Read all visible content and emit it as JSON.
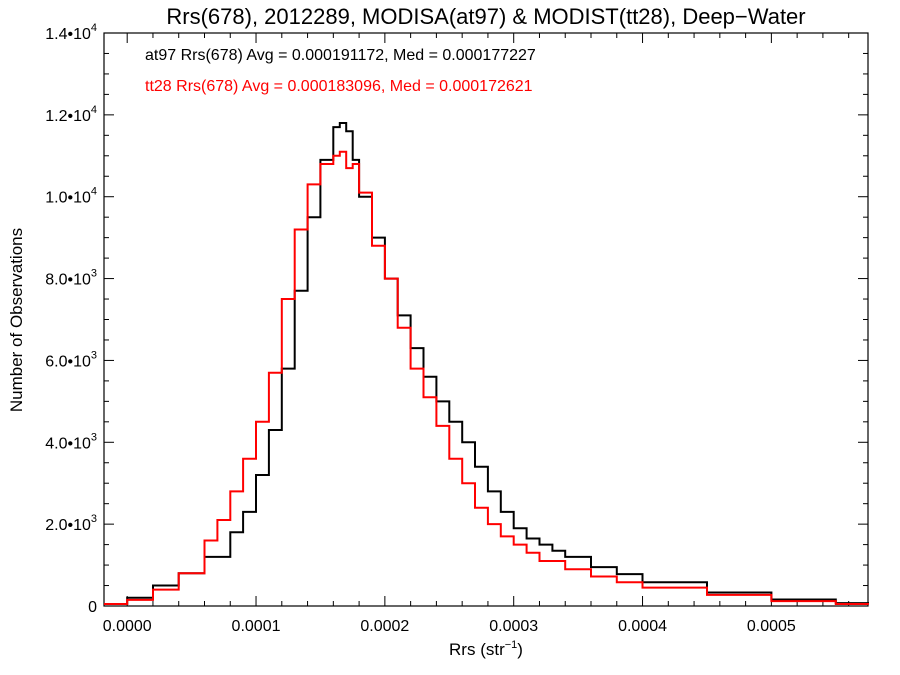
{
  "chart_data": {
    "type": "line",
    "title": "Rrs(678), 2012289, MODISA(at97) & MODIST(tt28), Deep−Water",
    "xlabel": "Rrs (str",
    "xlabel_sup": "−1",
    "xlabel_tail": ")",
    "ylabel": "Number of Observations",
    "xlim": [
      -1.8e-05,
      0.000575
    ],
    "ylim": [
      0,
      14000
    ],
    "x_ticks": [
      {
        "value": 0.0,
        "label": "0.0000"
      },
      {
        "value": 0.0001,
        "label": "0.0001"
      },
      {
        "value": 0.0002,
        "label": "0.0002"
      },
      {
        "value": 0.0003,
        "label": "0.0003"
      },
      {
        "value": 0.0004,
        "label": "0.0004"
      },
      {
        "value": 0.0005,
        "label": "0.0005"
      }
    ],
    "y_ticks": [
      {
        "value": 0,
        "label": "0",
        "exp": ""
      },
      {
        "value": 2000,
        "label": "2.0•10",
        "exp": "3"
      },
      {
        "value": 4000,
        "label": "4.0•10",
        "exp": "3"
      },
      {
        "value": 6000,
        "label": "6.0•10",
        "exp": "3"
      },
      {
        "value": 8000,
        "label": "8.0•10",
        "exp": "3"
      },
      {
        "value": 10000,
        "label": "1.0•10",
        "exp": "4"
      },
      {
        "value": 12000,
        "label": "1.2•10",
        "exp": "4"
      },
      {
        "value": 14000,
        "label": "1.4•10",
        "exp": "4"
      }
    ],
    "annotations": [
      {
        "text": "at97 Rrs(678) Avg = 0.000191172, Med = 0.000177227",
        "color": "#000000"
      },
      {
        "text": "tt28 Rrs(678) Avg = 0.000183096, Med = 0.000172621",
        "color": "#ff0000"
      }
    ],
    "series": [
      {
        "name": "at97",
        "color": "#000000",
        "x": [
          -1.8e-05,
          0.0,
          2e-05,
          4e-05,
          6e-05,
          8e-05,
          9e-05,
          0.0001,
          0.00011,
          0.00012,
          0.00013,
          0.00014,
          0.00015,
          0.00016,
          0.000165,
          0.00017,
          0.000175,
          0.00018,
          0.00019,
          0.0002,
          0.00021,
          0.00022,
          0.00023,
          0.00024,
          0.00025,
          0.00026,
          0.00027,
          0.00028,
          0.00029,
          0.0003,
          0.00031,
          0.00032,
          0.00033,
          0.00034,
          0.00036,
          0.00038,
          0.0004,
          0.00045,
          0.0005,
          0.00055,
          0.000575
        ],
        "y": [
          50,
          200,
          500,
          800,
          1200,
          1800,
          2300,
          3200,
          4300,
          5800,
          7700,
          9500,
          10900,
          11700,
          11800,
          11600,
          10900,
          10000,
          9000,
          8000,
          7100,
          6300,
          5600,
          5000,
          4500,
          4000,
          3400,
          2800,
          2300,
          1900,
          1650,
          1500,
          1350,
          1200,
          950,
          780,
          580,
          330,
          160,
          70,
          40
        ]
      },
      {
        "name": "tt28",
        "color": "#ff0000",
        "x": [
          -1.8e-05,
          0.0,
          2e-05,
          4e-05,
          6e-05,
          7e-05,
          8e-05,
          9e-05,
          0.0001,
          0.00011,
          0.00012,
          0.00013,
          0.00014,
          0.00015,
          0.00016,
          0.000165,
          0.00017,
          0.000175,
          0.00018,
          0.00019,
          0.0002,
          0.00021,
          0.00022,
          0.00023,
          0.00024,
          0.00025,
          0.00026,
          0.00027,
          0.00028,
          0.00029,
          0.0003,
          0.00031,
          0.00032,
          0.00034,
          0.00036,
          0.00038,
          0.0004,
          0.00045,
          0.0005,
          0.00055,
          0.000575
        ],
        "y": [
          50,
          150,
          400,
          800,
          1600,
          2100,
          2800,
          3600,
          4500,
          5700,
          7500,
          9200,
          10300,
          10800,
          11000,
          11100,
          10700,
          10800,
          10100,
          8800,
          8000,
          6800,
          5800,
          5100,
          4400,
          3600,
          3000,
          2400,
          2000,
          1700,
          1500,
          1300,
          1100,
          900,
          720,
          580,
          450,
          270,
          120,
          50,
          30
        ]
      }
    ]
  }
}
